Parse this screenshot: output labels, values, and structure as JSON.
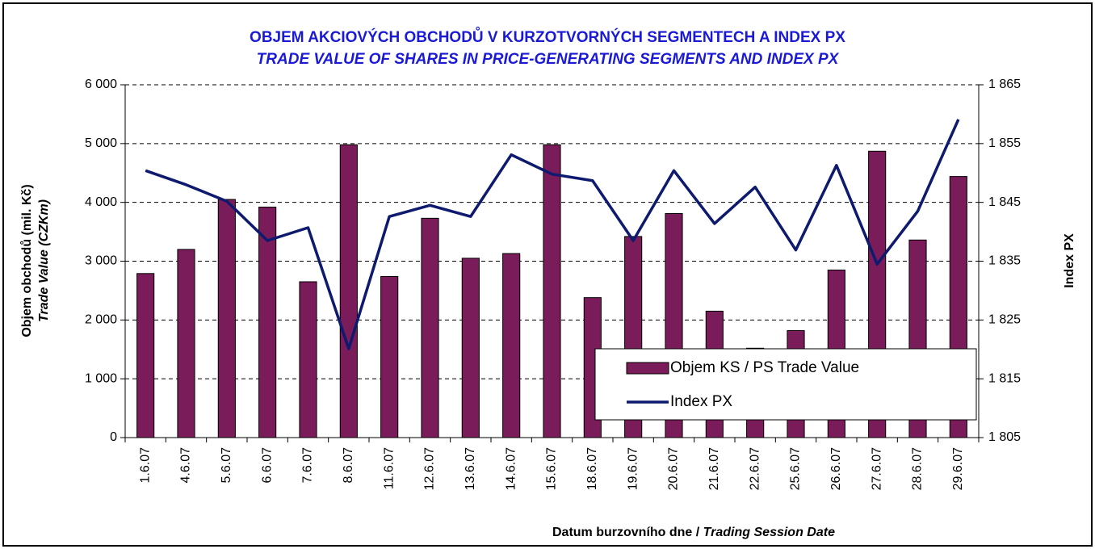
{
  "chart_data": {
    "type": "bar",
    "title": "OBJEM AKCIOVÝCH OBCHODŮ V KURZOTVORNÝCH SEGMENTECH A INDEX PX",
    "subtitle": "TRADE VALUE OF SHARES IN PRICE-GENERATING SEGMENTS AND INDEX PX",
    "y_label": "Objem obchodů (mil. Kč)",
    "y_label_2": "Trade Value (CZKm)",
    "y2_label": "Index PX",
    "x_label": "Datum burzovního dne / ",
    "x_label_2": "Trading Session Date",
    "categories": [
      "1.6.07",
      "4.6.07",
      "5.6.07",
      "6.6.07",
      "7.6.07",
      "8.6.07",
      "11.6.07",
      "12.6.07",
      "13.6.07",
      "14.6.07",
      "15.6.07",
      "18.6.07",
      "19.6.07",
      "20.6.07",
      "21.6.07",
      "22.6.07",
      "25.6.07",
      "26.6.07",
      "27.6.07",
      "28.6.07",
      "29.6.07"
    ],
    "series": [
      {
        "name": "Objem KS / PS Trade Value",
        "type": "bar",
        "color": "#7b1c5a",
        "values": [
          2790,
          3200,
          4050,
          3920,
          2650,
          4980,
          2740,
          3730,
          3050,
          3130,
          4980,
          2380,
          3420,
          3810,
          2150,
          1520,
          1820,
          2850,
          4870,
          3360,
          4440
        ]
      },
      {
        "name": "Index PX",
        "type": "line",
        "axis": "y2",
        "color": "#0d1a6e",
        "values": [
          1850.4,
          1848.0,
          1845.2,
          1838.5,
          1840.7,
          1820.1,
          1842.6,
          1844.5,
          1842.6,
          1853.1,
          1849.8,
          1848.7,
          1838.5,
          1850.4,
          1841.4,
          1847.6,
          1836.9,
          1851.3,
          1834.5,
          1843.5,
          1859.1
        ]
      }
    ],
    "ylim": [
      0,
      6000
    ],
    "yticks": [
      0,
      {
        "value": 1000,
        "label": "1 000"
      },
      {
        "value": 2000,
        "label": "2 000"
      },
      {
        "value": 3000,
        "label": "3 000"
      },
      {
        "value": 4000,
        "label": "4 000"
      },
      {
        "value": 5000,
        "label": "5 000"
      },
      {
        "value": 6000,
        "label": "6 000"
      }
    ],
    "y2lim": [
      1805,
      1865
    ],
    "y2ticks": [
      {
        "value": 1805,
        "label": "1 805"
      },
      {
        "value": 1815,
        "label": "1 815"
      },
      {
        "value": 1825,
        "label": "1 825"
      },
      {
        "value": 1835,
        "label": "1 835"
      },
      {
        "value": 1845,
        "label": "1 845"
      },
      {
        "value": 1855,
        "label": "1 855"
      },
      {
        "value": 1865,
        "label": "1 865"
      }
    ],
    "grid": true,
    "legend": "lower right"
  }
}
